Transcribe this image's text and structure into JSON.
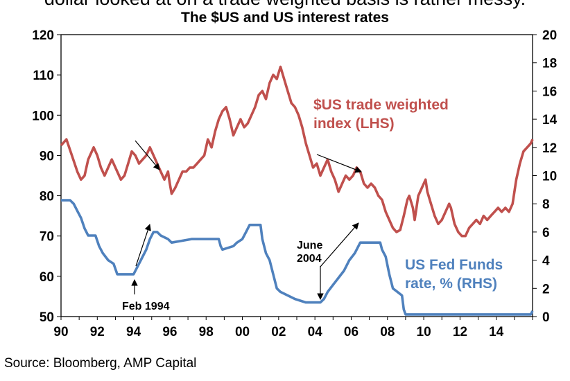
{
  "header_cut_text": "dollar looked at on a trade weighted basis is rather messy.",
  "footer": {
    "source": "Source: Bloomberg, AMP Capital"
  },
  "chart_data": {
    "type": "line",
    "title": "The $US and US interest rates",
    "x_ticks": [
      "90",
      "92",
      "94",
      "96",
      "98",
      "00",
      "02",
      "04",
      "06",
      "08",
      "10",
      "12",
      "14"
    ],
    "x_range": [
      1990,
      2016
    ],
    "y_left": {
      "range": [
        50,
        120
      ],
      "ticks": [
        "50",
        "60",
        "70",
        "80",
        "90",
        "100",
        "110",
        "120"
      ]
    },
    "y_right": {
      "range": [
        0,
        20
      ],
      "ticks": [
        "0",
        "2",
        "4",
        "6",
        "8",
        "10",
        "12",
        "14",
        "16",
        "18",
        "20"
      ]
    },
    "grid": false,
    "series": [
      {
        "name": "$US trade weighted index (LHS)",
        "label_lines": [
          "$US trade weighted",
          "index (LHS)"
        ],
        "axis": "left",
        "color": "#c0504d",
        "points": [
          [
            1990.0,
            92.5
          ],
          [
            1990.3,
            94
          ],
          [
            1990.6,
            90
          ],
          [
            1990.9,
            86
          ],
          [
            1991.1,
            84
          ],
          [
            1991.3,
            85
          ],
          [
            1991.5,
            89
          ],
          [
            1991.8,
            92
          ],
          [
            1992.0,
            90
          ],
          [
            1992.2,
            87
          ],
          [
            1992.4,
            85
          ],
          [
            1992.6,
            87
          ],
          [
            1992.8,
            89
          ],
          [
            1993.1,
            86
          ],
          [
            1993.3,
            84
          ],
          [
            1993.5,
            85
          ],
          [
            1993.7,
            88
          ],
          [
            1993.9,
            91
          ],
          [
            1994.1,
            90
          ],
          [
            1994.3,
            88
          ],
          [
            1994.5,
            89
          ],
          [
            1994.7,
            90
          ],
          [
            1994.9,
            92
          ],
          [
            1995.1,
            90
          ],
          [
            1995.3,
            88
          ],
          [
            1995.5,
            86
          ],
          [
            1995.7,
            84
          ],
          [
            1995.9,
            86
          ],
          [
            1996.0,
            83
          ],
          [
            1996.1,
            80.5
          ],
          [
            1996.3,
            82
          ],
          [
            1996.5,
            84
          ],
          [
            1996.7,
            86
          ],
          [
            1996.9,
            86
          ],
          [
            1997.1,
            87
          ],
          [
            1997.3,
            87
          ],
          [
            1997.5,
            88
          ],
          [
            1997.7,
            89
          ],
          [
            1997.9,
            90
          ],
          [
            1998.1,
            94
          ],
          [
            1998.3,
            92
          ],
          [
            1998.5,
            96
          ],
          [
            1998.7,
            99
          ],
          [
            1998.9,
            101
          ],
          [
            1999.1,
            102
          ],
          [
            1999.3,
            99
          ],
          [
            1999.5,
            95
          ],
          [
            1999.7,
            97
          ],
          [
            1999.9,
            99
          ],
          [
            2000.1,
            97
          ],
          [
            2000.3,
            98
          ],
          [
            2000.5,
            100
          ],
          [
            2000.7,
            102
          ],
          [
            2000.9,
            105
          ],
          [
            2001.1,
            106
          ],
          [
            2001.3,
            104
          ],
          [
            2001.5,
            108
          ],
          [
            2001.7,
            110
          ],
          [
            2001.9,
            109
          ],
          [
            2002.1,
            112
          ],
          [
            2002.3,
            109
          ],
          [
            2002.5,
            106
          ],
          [
            2002.7,
            103
          ],
          [
            2002.9,
            102
          ],
          [
            2003.1,
            100
          ],
          [
            2003.3,
            97
          ],
          [
            2003.5,
            93
          ],
          [
            2003.7,
            90
          ],
          [
            2003.9,
            87
          ],
          [
            2004.1,
            88
          ],
          [
            2004.3,
            85
          ],
          [
            2004.5,
            87
          ],
          [
            2004.7,
            89
          ],
          [
            2004.9,
            86
          ],
          [
            2005.1,
            84
          ],
          [
            2005.3,
            81
          ],
          [
            2005.5,
            83
          ],
          [
            2005.7,
            85
          ],
          [
            2005.9,
            84
          ],
          [
            2006.1,
            85
          ],
          [
            2006.3,
            87
          ],
          [
            2006.5,
            86
          ],
          [
            2006.7,
            83
          ],
          [
            2006.9,
            82
          ],
          [
            2007.1,
            83
          ],
          [
            2007.3,
            82
          ],
          [
            2007.5,
            80
          ],
          [
            2007.7,
            79
          ],
          [
            2007.9,
            76
          ],
          [
            2008.1,
            74
          ],
          [
            2008.3,
            72
          ],
          [
            2008.5,
            71
          ],
          [
            2008.7,
            71.5
          ],
          [
            2008.9,
            75
          ],
          [
            2009.1,
            79
          ],
          [
            2009.2,
            80
          ],
          [
            2009.4,
            77
          ],
          [
            2009.5,
            74
          ],
          [
            2009.7,
            80
          ],
          [
            2009.9,
            82
          ],
          [
            2010.1,
            84
          ],
          [
            2010.2,
            81
          ],
          [
            2010.4,
            78
          ],
          [
            2010.6,
            75
          ],
          [
            2010.8,
            73
          ],
          [
            2011.0,
            74
          ],
          [
            2011.2,
            76
          ],
          [
            2011.4,
            78
          ],
          [
            2011.5,
            77
          ],
          [
            2011.7,
            73
          ],
          [
            2011.9,
            71
          ],
          [
            2012.1,
            70
          ],
          [
            2012.3,
            70
          ],
          [
            2012.5,
            72
          ],
          [
            2012.7,
            73
          ],
          [
            2012.9,
            74
          ],
          [
            2013.1,
            73
          ],
          [
            2013.3,
            75
          ],
          [
            2013.5,
            74
          ],
          [
            2013.7,
            75
          ],
          [
            2013.9,
            76
          ],
          [
            2014.1,
            77
          ],
          [
            2014.3,
            76
          ],
          [
            2014.5,
            77
          ],
          [
            2014.7,
            76
          ],
          [
            2014.9,
            78
          ],
          [
            2015.1,
            84
          ],
          [
            2015.3,
            88
          ],
          [
            2015.5,
            91
          ],
          [
            2015.7,
            92
          ],
          [
            2015.9,
            93
          ],
          [
            2016.0,
            94
          ]
        ]
      },
      {
        "name": "US Fed Funds rate, % (RHS)",
        "label_lines": [
          "US Fed Funds",
          "rate, % (RHS)"
        ],
        "axis": "right",
        "color": "#4f81bd",
        "points": [
          [
            1990.0,
            8.25
          ],
          [
            1990.5,
            8.25
          ],
          [
            1990.7,
            8.0
          ],
          [
            1990.9,
            7.5
          ],
          [
            1991.1,
            7.0
          ],
          [
            1991.3,
            6.25
          ],
          [
            1991.5,
            5.75
          ],
          [
            1991.9,
            5.75
          ],
          [
            1992.1,
            5.0
          ],
          [
            1992.3,
            4.5
          ],
          [
            1992.6,
            4.0
          ],
          [
            1992.9,
            3.75
          ],
          [
            1993.1,
            3.0
          ],
          [
            1994.0,
            3.0
          ],
          [
            1994.1,
            3.25
          ],
          [
            1994.3,
            3.75
          ],
          [
            1994.5,
            4.25
          ],
          [
            1994.7,
            4.75
          ],
          [
            1994.9,
            5.5
          ],
          [
            1995.1,
            6.0
          ],
          [
            1995.3,
            6.0
          ],
          [
            1995.5,
            5.75
          ],
          [
            1995.9,
            5.5
          ],
          [
            1996.1,
            5.25
          ],
          [
            1997.2,
            5.5
          ],
          [
            1998.7,
            5.5
          ],
          [
            1998.8,
            5.0
          ],
          [
            1998.9,
            4.75
          ],
          [
            1999.5,
            5.0
          ],
          [
            1999.7,
            5.25
          ],
          [
            2000.0,
            5.5
          ],
          [
            2000.2,
            6.0
          ],
          [
            2000.4,
            6.5
          ],
          [
            2001.0,
            6.5
          ],
          [
            2001.1,
            5.5
          ],
          [
            2001.3,
            4.5
          ],
          [
            2001.5,
            4.0
          ],
          [
            2001.7,
            3.0
          ],
          [
            2001.9,
            2.0
          ],
          [
            2002.1,
            1.75
          ],
          [
            2002.9,
            1.25
          ],
          [
            2003.5,
            1.0
          ],
          [
            2004.3,
            1.0
          ],
          [
            2004.5,
            1.25
          ],
          [
            2004.7,
            1.75
          ],
          [
            2005.0,
            2.25
          ],
          [
            2005.3,
            2.75
          ],
          [
            2005.6,
            3.25
          ],
          [
            2005.9,
            4.0
          ],
          [
            2006.2,
            4.5
          ],
          [
            2006.5,
            5.25
          ],
          [
            2007.6,
            5.25
          ],
          [
            2007.7,
            4.75
          ],
          [
            2007.9,
            4.25
          ],
          [
            2008.1,
            3.0
          ],
          [
            2008.3,
            2.0
          ],
          [
            2008.8,
            1.5
          ],
          [
            2008.9,
            0.5
          ],
          [
            2009.0,
            0.15
          ],
          [
            2015.9,
            0.15
          ],
          [
            2016.0,
            0.4
          ]
        ]
      }
    ],
    "annotations": [
      {
        "text": "Feb 1994",
        "at": [
          1994.1,
          3.0
        ],
        "lines": [
          "Feb 1994"
        ]
      },
      {
        "text": "June 2004",
        "at": [
          2004.5,
          1.0
        ],
        "lines": [
          "June",
          "2004"
        ]
      }
    ]
  }
}
